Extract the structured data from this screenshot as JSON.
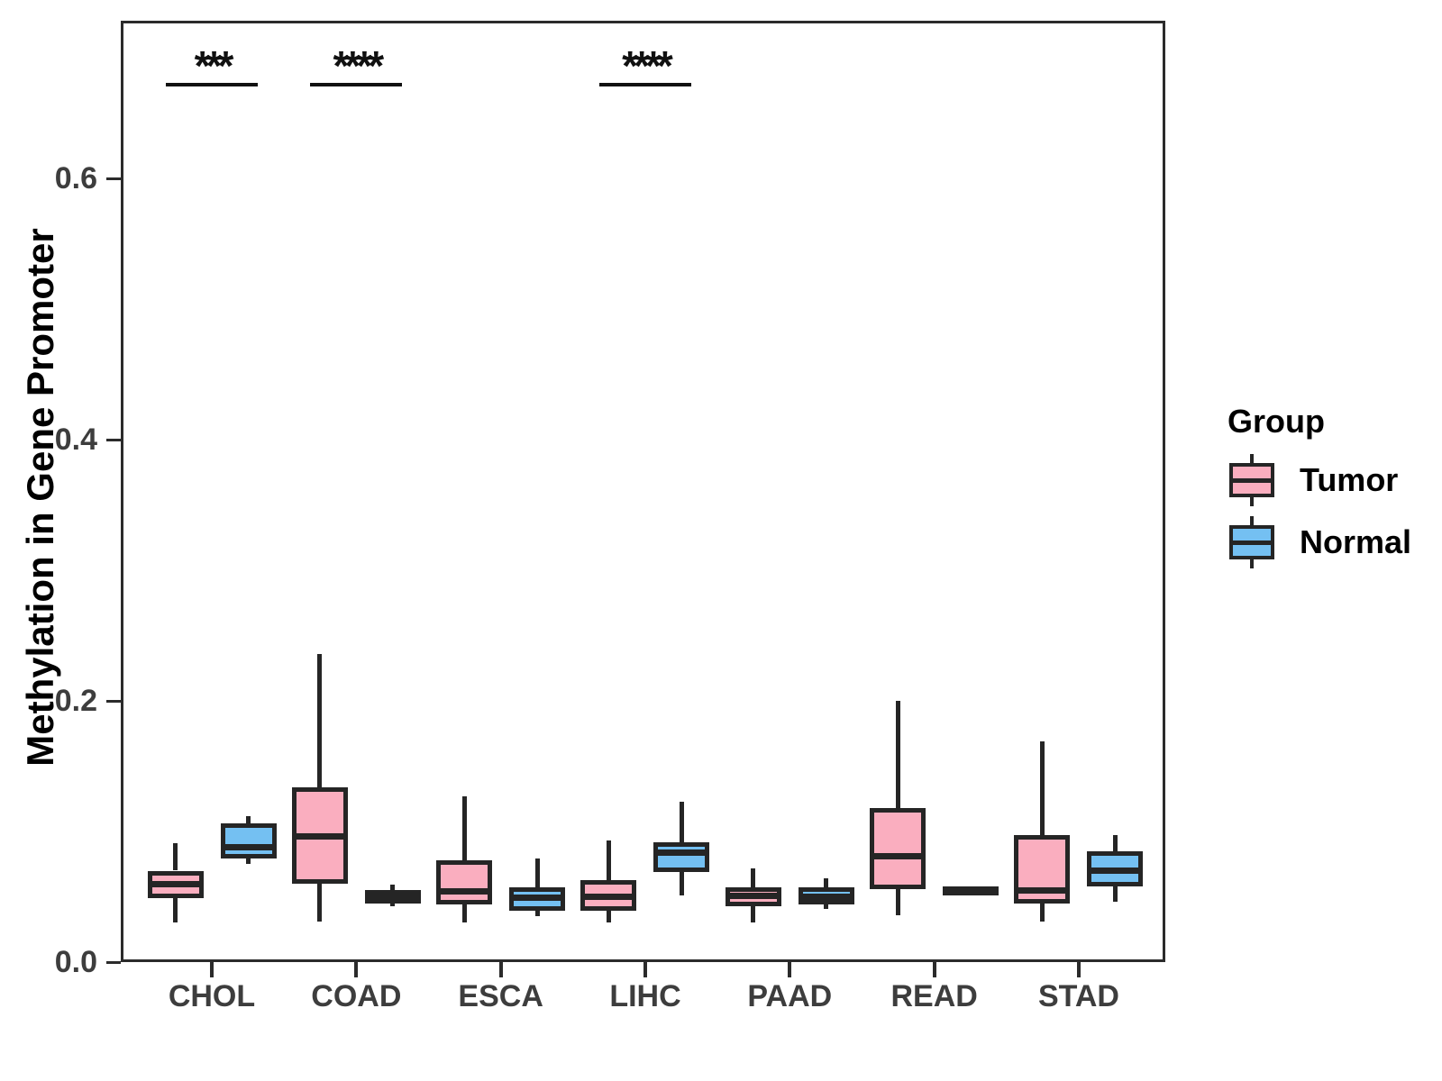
{
  "legend": {
    "title": "Group"
  },
  "chart_data": {
    "type": "boxplot",
    "title": "",
    "xlabel": "",
    "ylabel": "Methylation in Gene Promoter",
    "categories": [
      "CHOL",
      "COAD",
      "ESCA",
      "LIHC",
      "PAAD",
      "READ",
      "STAD"
    ],
    "ytick_values": [
      0.0,
      0.2,
      0.4,
      0.6
    ],
    "ytick_labels": [
      "0.0",
      "0.2",
      "0.4",
      "0.6"
    ],
    "ylim": [
      0,
      0.72
    ],
    "grid": false,
    "legend_position": "right",
    "legend_title": "Group",
    "stroke_color": "#252525",
    "series": [
      {
        "name": "Tumor",
        "fill": "#FAAEBF",
        "boxes": [
          {
            "category": "CHOL",
            "whisker_low": 0.03,
            "q1": 0.049,
            "median": 0.06,
            "q3": 0.07,
            "whisker_high": 0.091
          },
          {
            "category": "COAD",
            "whisker_low": 0.031,
            "q1": 0.06,
            "median": 0.096,
            "q3": 0.134,
            "whisker_high": 0.236
          },
          {
            "category": "ESCA",
            "whisker_low": 0.03,
            "q1": 0.044,
            "median": 0.054,
            "q3": 0.078,
            "whisker_high": 0.127
          },
          {
            "category": "LIHC",
            "whisker_low": 0.03,
            "q1": 0.039,
            "median": 0.05,
            "q3": 0.063,
            "whisker_high": 0.093
          },
          {
            "category": "PAAD",
            "whisker_low": 0.03,
            "q1": 0.043,
            "median": 0.051,
            "q3": 0.057,
            "whisker_high": 0.072
          },
          {
            "category": "READ",
            "whisker_low": 0.036,
            "q1": 0.056,
            "median": 0.081,
            "q3": 0.118,
            "whisker_high": 0.2
          },
          {
            "category": "STAD",
            "whisker_low": 0.031,
            "q1": 0.045,
            "median": 0.055,
            "q3": 0.097,
            "whisker_high": 0.169
          }
        ]
      },
      {
        "name": "Normal",
        "fill": "#74C0F2",
        "boxes": [
          {
            "category": "CHOL",
            "whisker_low": 0.075,
            "q1": 0.079,
            "median": 0.088,
            "q3": 0.106,
            "whisker_high": 0.112
          },
          {
            "category": "COAD",
            "whisker_low": 0.043,
            "q1": 0.045,
            "median": 0.05,
            "q3": 0.055,
            "whisker_high": 0.059
          },
          {
            "category": "ESCA",
            "whisker_low": 0.035,
            "q1": 0.039,
            "median": 0.049,
            "q3": 0.057,
            "whisker_high": 0.079
          },
          {
            "category": "LIHC",
            "whisker_low": 0.051,
            "q1": 0.069,
            "median": 0.084,
            "q3": 0.092,
            "whisker_high": 0.123
          },
          {
            "category": "PAAD",
            "whisker_low": 0.041,
            "q1": 0.044,
            "median": 0.05,
            "q3": 0.057,
            "whisker_high": 0.064
          },
          {
            "category": "READ",
            "whisker_low": 0.051,
            "q1": 0.051,
            "median": 0.055,
            "q3": 0.058,
            "whisker_high": 0.058
          },
          {
            "category": "STAD",
            "whisker_low": 0.046,
            "q1": 0.058,
            "median": 0.07,
            "q3": 0.085,
            "whisker_high": 0.097
          }
        ]
      }
    ],
    "significance": [
      {
        "category": "CHOL",
        "label": "***"
      },
      {
        "category": "COAD",
        "label": "****"
      },
      {
        "category": "LIHC",
        "label": "****"
      }
    ]
  }
}
